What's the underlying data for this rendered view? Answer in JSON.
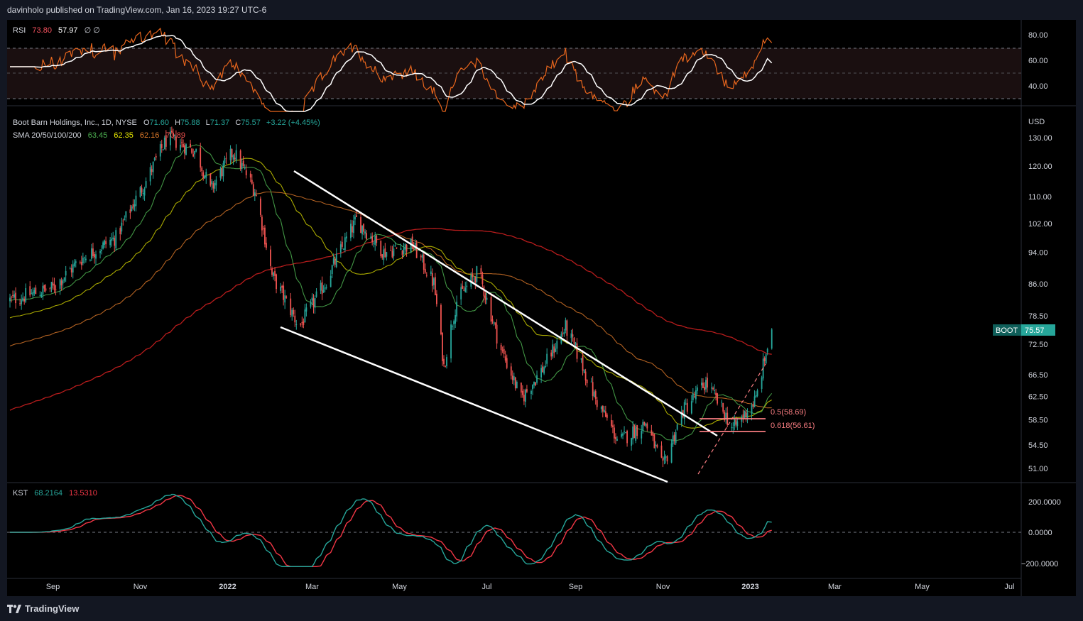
{
  "header": {
    "publish_text": "davinholo published on TradingView.com, Jan 16, 2023 19:27 UTC-6"
  },
  "footer": {
    "brand": "TradingView"
  },
  "colors": {
    "up": "#26a69a",
    "down": "#ef5350",
    "rsi": "#f7525f",
    "rsi_line": "#e8661d",
    "rsi_ma": "#ffffff",
    "sma20": "#4caf50",
    "sma50": "#c8c800",
    "sma100": "#e07b2a",
    "sma200": "#b71c1c",
    "kst": "#26a69a",
    "kst_signal": "#f23645",
    "fib": "#f77c80",
    "trend": "#ffffff"
  },
  "rsi_panel": {
    "name": "RSI",
    "v1": "73.80",
    "v2": "57.97",
    "extra": "∅ ∅",
    "ticks": [
      "80.00",
      "60.00",
      "40.00"
    ]
  },
  "main_panel": {
    "title": "Boot Barn Holdings, Inc., 1D, NYSE",
    "o_label": "O",
    "o": "71.60",
    "h_label": "H",
    "h": "75.88",
    "l_label": "L",
    "l": "71.37",
    "c_label": "C",
    "c": "75.57",
    "chg": "+3.22 (+4.45%)",
    "sma_label": "SMA 20/50/100/200",
    "sma20": "63.45",
    "sma50": "62.35",
    "sma100": "62.16",
    "sma200": "70.89",
    "currency": "USD",
    "symbol": "BOOT",
    "last_price": "75.57",
    "price_ticks": [
      "130.00",
      "120.00",
      "110.00",
      "102.00",
      "94.00",
      "86.00",
      "78.50",
      "72.50",
      "66.50",
      "62.50",
      "58.50",
      "54.50",
      "51.00"
    ],
    "fib": [
      {
        "label": "0.5(58.69)"
      },
      {
        "label": "0.618(56.61)"
      }
    ]
  },
  "kst_panel": {
    "name": "KST",
    "v1": "68.2164",
    "v2": "13.5310",
    "ticks": [
      "200.0000",
      "0.0000",
      "−200.0000"
    ]
  },
  "time_axis": [
    "Sep",
    "Nov",
    "2022",
    "Mar",
    "May",
    "Jul",
    "Sep",
    "Nov",
    "2023",
    "Mar",
    "May",
    "Jul"
  ],
  "chart_data": {
    "type": "candlestick",
    "title": "Boot Barn Holdings, Inc., 1D, NYSE",
    "symbol": "BOOT",
    "ohlc_last": {
      "open": 71.6,
      "high": 75.88,
      "low": 71.37,
      "close": 75.57,
      "change": 3.22,
      "change_pct": 4.45
    },
    "sma": {
      "20": 63.45,
      "50": 62.35,
      "100": 62.16,
      "200": 70.89
    },
    "price_path": [
      [
        "2021-08-01",
        82
      ],
      [
        "2021-09-01",
        85
      ],
      [
        "2021-09-20",
        92
      ],
      [
        "2021-10-15",
        98
      ],
      [
        "2021-11-05",
        115
      ],
      [
        "2021-11-20",
        130
      ],
      [
        "2021-12-10",
        125
      ],
      [
        "2021-12-20",
        112
      ],
      [
        "2022-01-05",
        125
      ],
      [
        "2022-01-20",
        112
      ],
      [
        "2022-02-01",
        88
      ],
      [
        "2022-02-20",
        76
      ],
      [
        "2022-03-10",
        86
      ],
      [
        "2022-04-01",
        103
      ],
      [
        "2022-04-20",
        94
      ],
      [
        "2022-05-10",
        96
      ],
      [
        "2022-05-25",
        86
      ],
      [
        "2022-06-01",
        68
      ],
      [
        "2022-06-10",
        82
      ],
      [
        "2022-06-25",
        89
      ],
      [
        "2022-07-10",
        72
      ],
      [
        "2022-07-25",
        62
      ],
      [
        "2022-08-10",
        68
      ],
      [
        "2022-08-25",
        76
      ],
      [
        "2022-09-15",
        62
      ],
      [
        "2022-10-01",
        55
      ],
      [
        "2022-10-20",
        58
      ],
      [
        "2022-11-01",
        51
      ],
      [
        "2022-11-15",
        60
      ],
      [
        "2022-12-01",
        65
      ],
      [
        "2022-12-20",
        57
      ],
      [
        "2023-01-05",
        62
      ],
      [
        "2023-01-16",
        75.57
      ]
    ],
    "trendlines": [
      {
        "from": [
          "2022-02-15",
          120
        ],
        "to": [
          "2022-11-10",
          59
        ]
      },
      {
        "from": [
          "2022-02-10",
          76
        ],
        "to": [
          "2022-11-10",
          51
        ]
      },
      {
        "from": [
          "2022-12-01",
          50.5
        ],
        "to": [
          "2023-01-30",
          68
        ]
      }
    ],
    "fib_levels": [
      {
        "ratio": 0.5,
        "price": 58.69
      },
      {
        "ratio": 0.618,
        "price": 56.61
      }
    ],
    "rsi": {
      "value": 73.8,
      "ma": 57.97,
      "bands": [
        70,
        50,
        30
      ]
    },
    "kst": {
      "value": 68.2164,
      "signal": 13.531
    }
  }
}
